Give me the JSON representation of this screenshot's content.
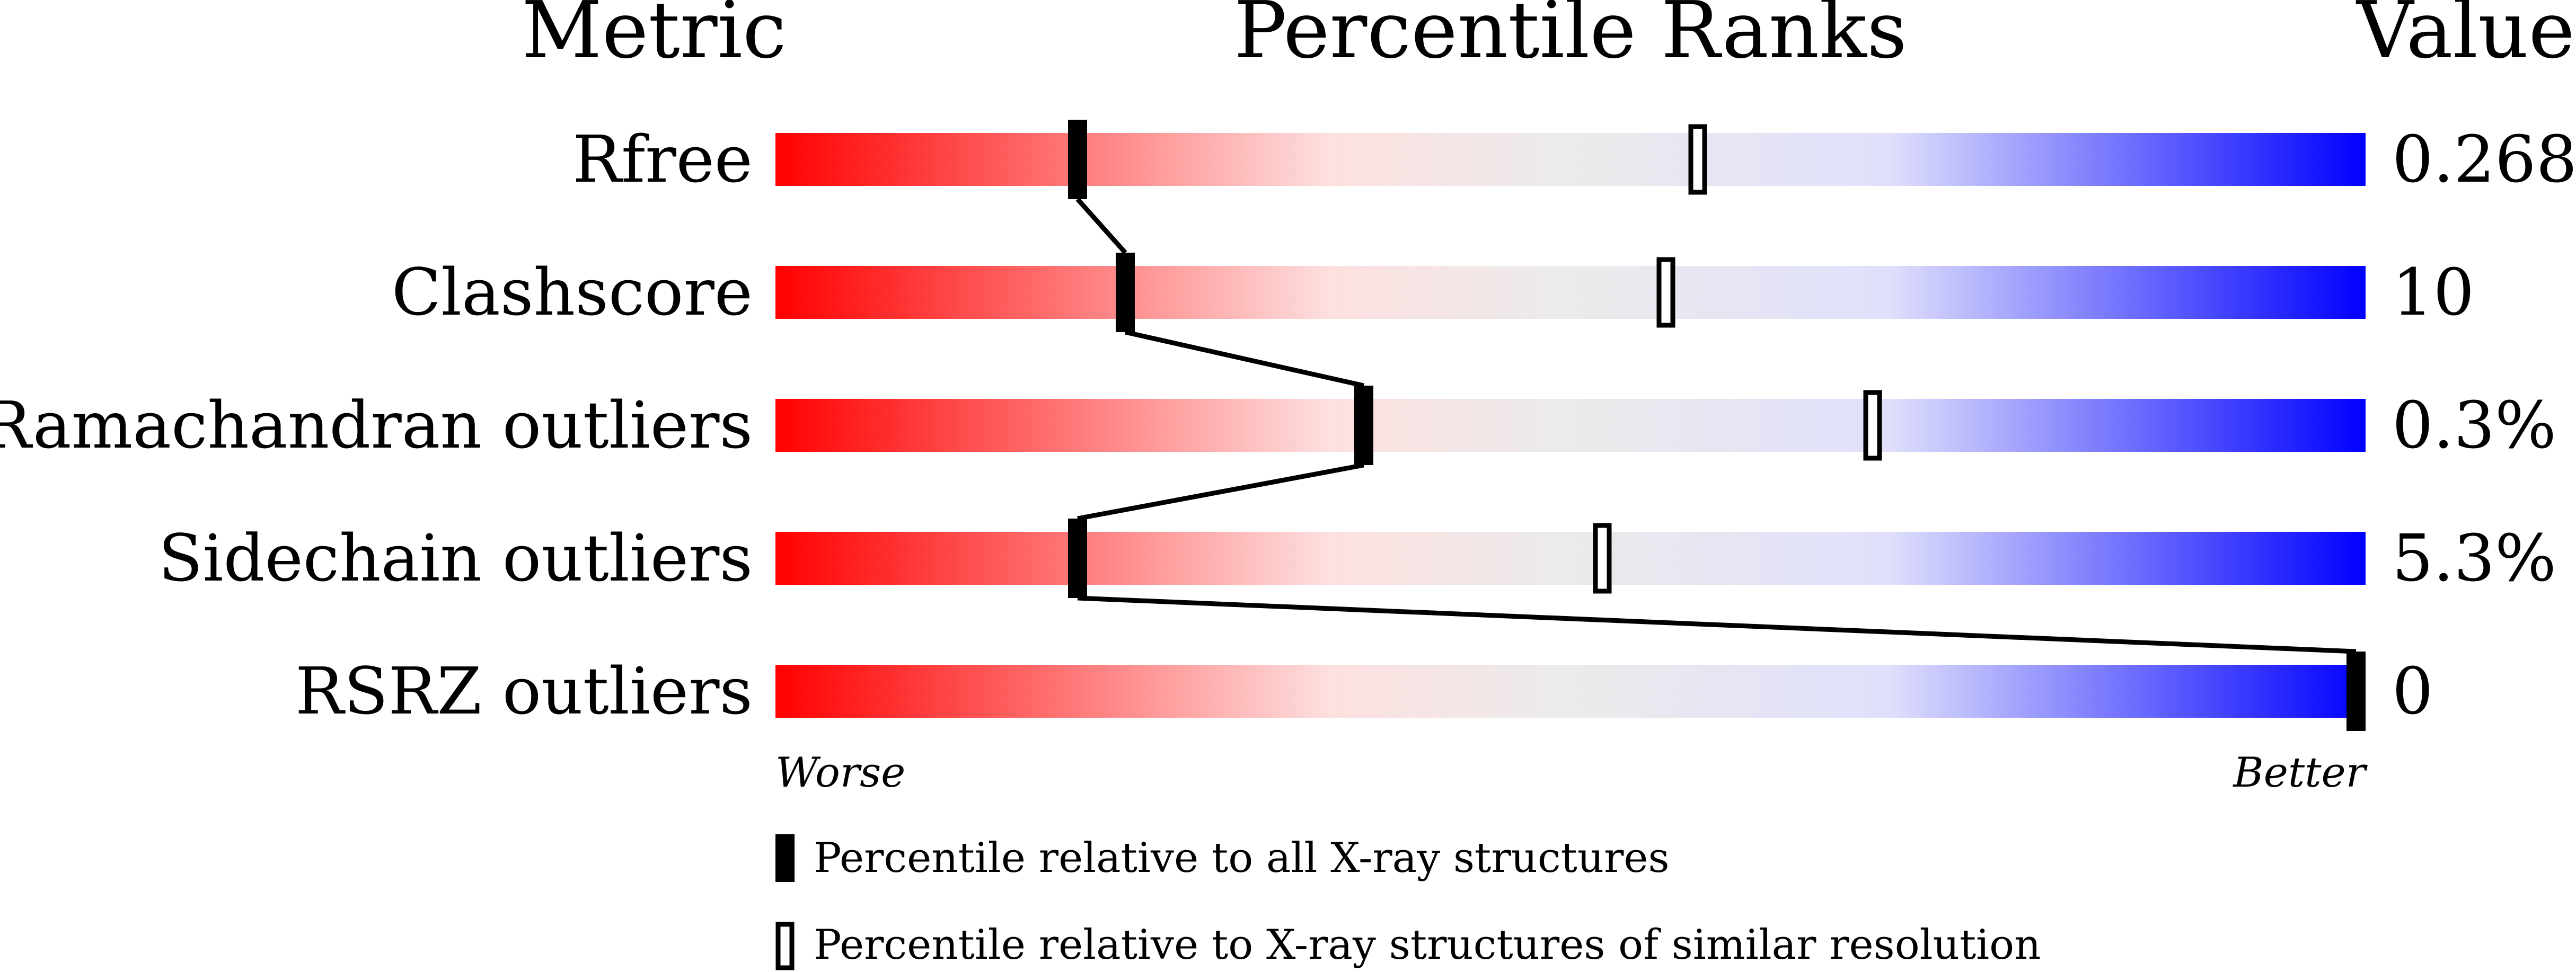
{
  "chart_data": {
    "type": "percentile-rank-bars",
    "headers": {
      "metric": "Metric",
      "ranks": "Percentile Ranks",
      "value": "Value"
    },
    "xlim": [
      0,
      100
    ],
    "axis_labels": {
      "left": "Worse",
      "right": "Better"
    },
    "gradient_colors": [
      "#ff0000",
      "#fde0e0",
      "#ebebeb",
      "#e0e0fc",
      "#0000ff"
    ],
    "metrics": [
      {
        "name": "Rfree",
        "value": "0.268",
        "percentile_all": 19,
        "percentile_similar": 58
      },
      {
        "name": "Clashscore",
        "value": "10",
        "percentile_all": 22,
        "percentile_similar": 56
      },
      {
        "name": "Ramachandran outliers",
        "value": "0.3%",
        "percentile_all": 37,
        "percentile_similar": 69
      },
      {
        "name": "Sidechain outliers",
        "value": "5.3%",
        "percentile_all": 19,
        "percentile_similar": 52
      },
      {
        "name": "RSRZ outliers",
        "value": "0",
        "percentile_all": 100,
        "percentile_similar": null
      }
    ],
    "legend": [
      {
        "marker": "filled",
        "label": "Percentile relative to all X-ray structures"
      },
      {
        "marker": "open",
        "label": "Percentile relative to X-ray structures of similar resolution"
      }
    ]
  }
}
